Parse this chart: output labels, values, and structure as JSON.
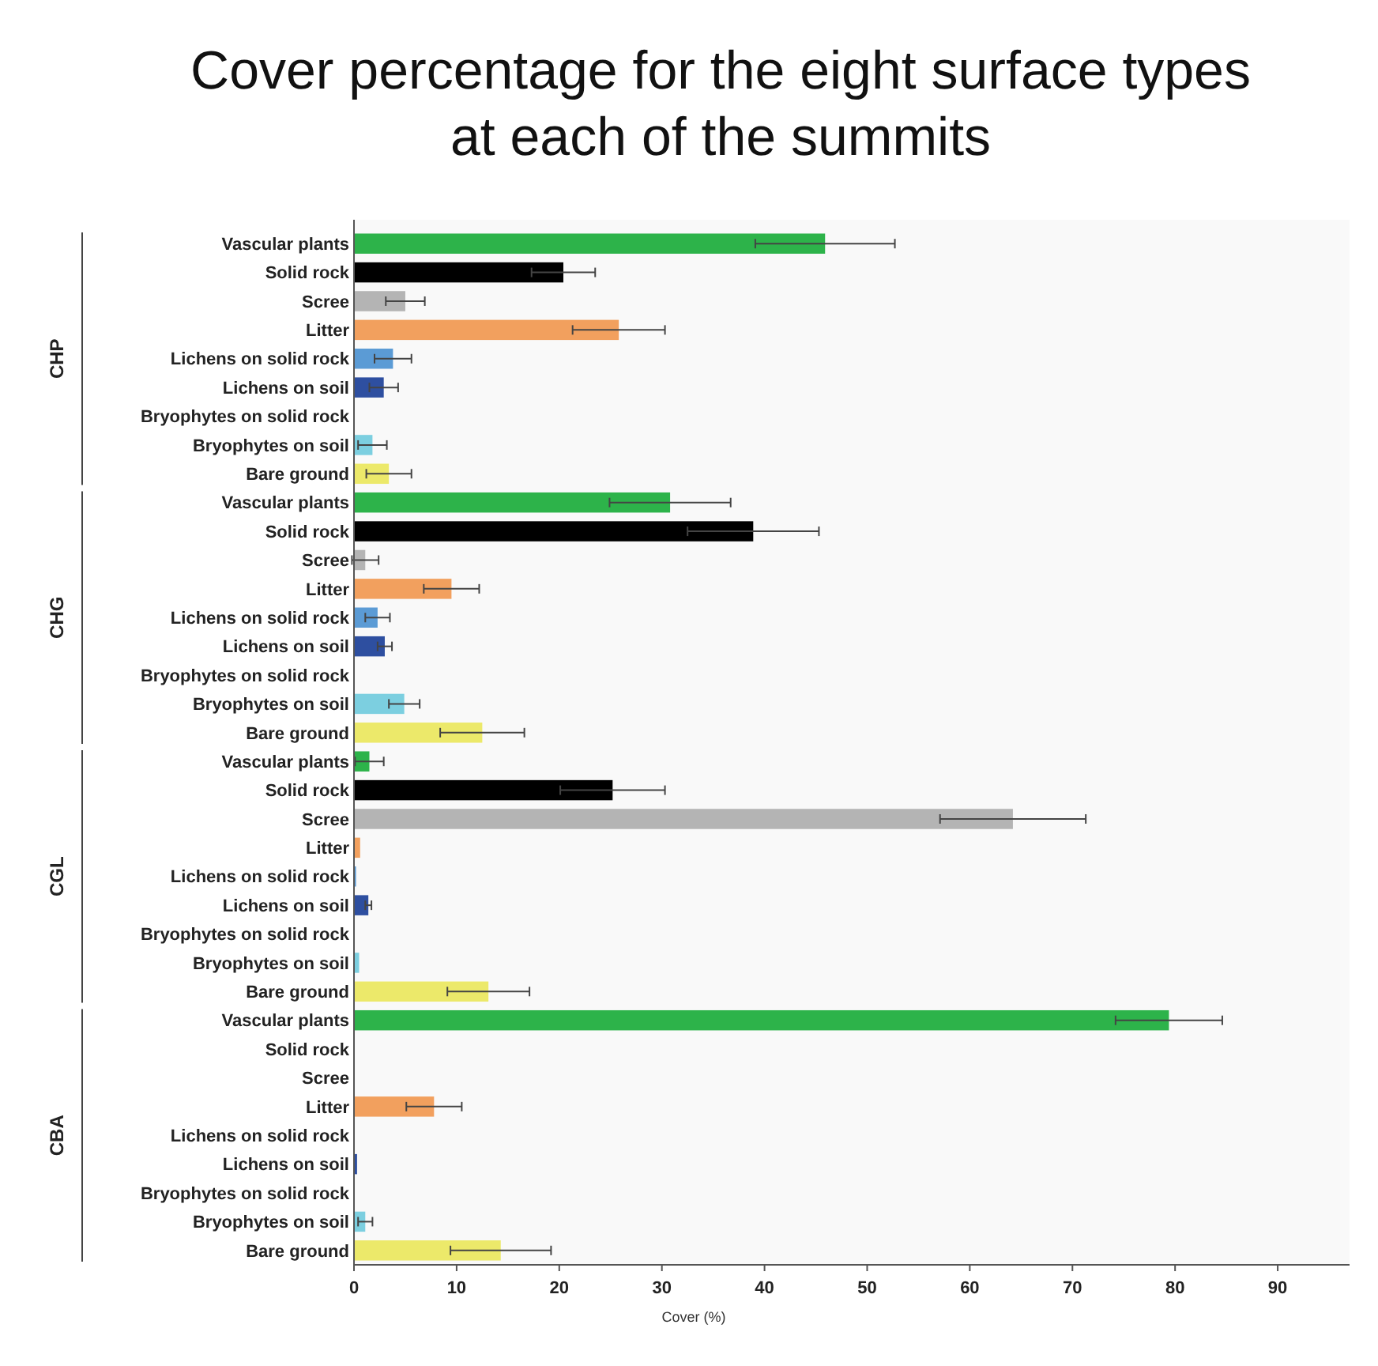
{
  "chart_data": {
    "type": "bar",
    "orientation": "horizontal",
    "title": "Cover percentage for the eight surface types at each of the summits",
    "xlabel": "Cover (%)",
    "annotations": [
      "CHP",
      "CHG",
      "CGL",
      "CBA"
    ],
    "categories": [
      "Vascular plants",
      "Solid rock",
      "Scree",
      "Litter",
      "Lichens on solid rock",
      "Lichens on soil",
      "Bryophytes on solid rock",
      "Bryophytes on soil",
      "Bare ground",
      "Vascular plants",
      "Solid rock",
      "Scree",
      "Litter",
      "Lichens on solid rock",
      "Lichens on soil",
      "Bryophytes on solid rock",
      "Bryophytes on soil",
      "Bare ground",
      "Vascular plants",
      "Solid rock",
      "Scree",
      "Litter",
      "Lichens on solid rock",
      "Lichens on soil",
      "Bryophytes on solid rock",
      "Bryophytes on soil",
      "Bare ground",
      "Vascular plants",
      "Solid rock",
      "Scree",
      "Litter",
      "Lichens on solid rock",
      "Lichens on soil",
      "Bryophytes on solid rock",
      "Bryophytes on soil",
      "Bare ground"
    ],
    "values": [
      45.9,
      20.4,
      5.0,
      25.8,
      3.8,
      2.9,
      0,
      1.8,
      3.4,
      30.8,
      38.9,
      1.1,
      9.5,
      2.3,
      3.0,
      0,
      4.9,
      12.5,
      1.5,
      25.2,
      64.2,
      0.6,
      0.2,
      1.4,
      0,
      0.5,
      13.1,
      79.4,
      0,
      0,
      7.8,
      0,
      0.3,
      0,
      1.1,
      14.3
    ],
    "errors": [
      6.8,
      3.1,
      1.9,
      4.5,
      1.8,
      1.4,
      null,
      1.4,
      2.2,
      5.9,
      6.4,
      1.3,
      2.7,
      1.2,
      0.7,
      null,
      1.5,
      4.1,
      1.4,
      5.1,
      7.1,
      null,
      null,
      0.3,
      null,
      null,
      4.0,
      5.2,
      null,
      null,
      2.7,
      null,
      null,
      null,
      0.7,
      4.9
    ],
    "colors": [
      "#2db34a",
      "#000000",
      "#b4b4b4",
      "#f2a05e",
      "#5b9bd5",
      "#2e4fa0",
      "#7fb0d0",
      "#7ccfe0",
      "#ece96a",
      "#2db34a",
      "#000000",
      "#b4b4b4",
      "#f2a05e",
      "#5b9bd5",
      "#2e4fa0",
      "#7fb0d0",
      "#7ccfe0",
      "#ece96a",
      "#2db34a",
      "#000000",
      "#b4b4b4",
      "#f2a05e",
      "#5b9bd5",
      "#2e4fa0",
      "#7fb0d0",
      "#7ccfe0",
      "#ece96a",
      "#2db34a",
      "#000000",
      "#b4b4b4",
      "#f2a05e",
      "#5b9bd5",
      "#2e4fa0",
      "#7fb0d0",
      "#7ccfe0",
      "#ece96a"
    ],
    "xlim": [
      0,
      97
    ],
    "xticks": [
      0,
      10,
      20,
      30,
      40,
      50,
      60,
      70,
      80,
      90
    ],
    "grid": false
  }
}
